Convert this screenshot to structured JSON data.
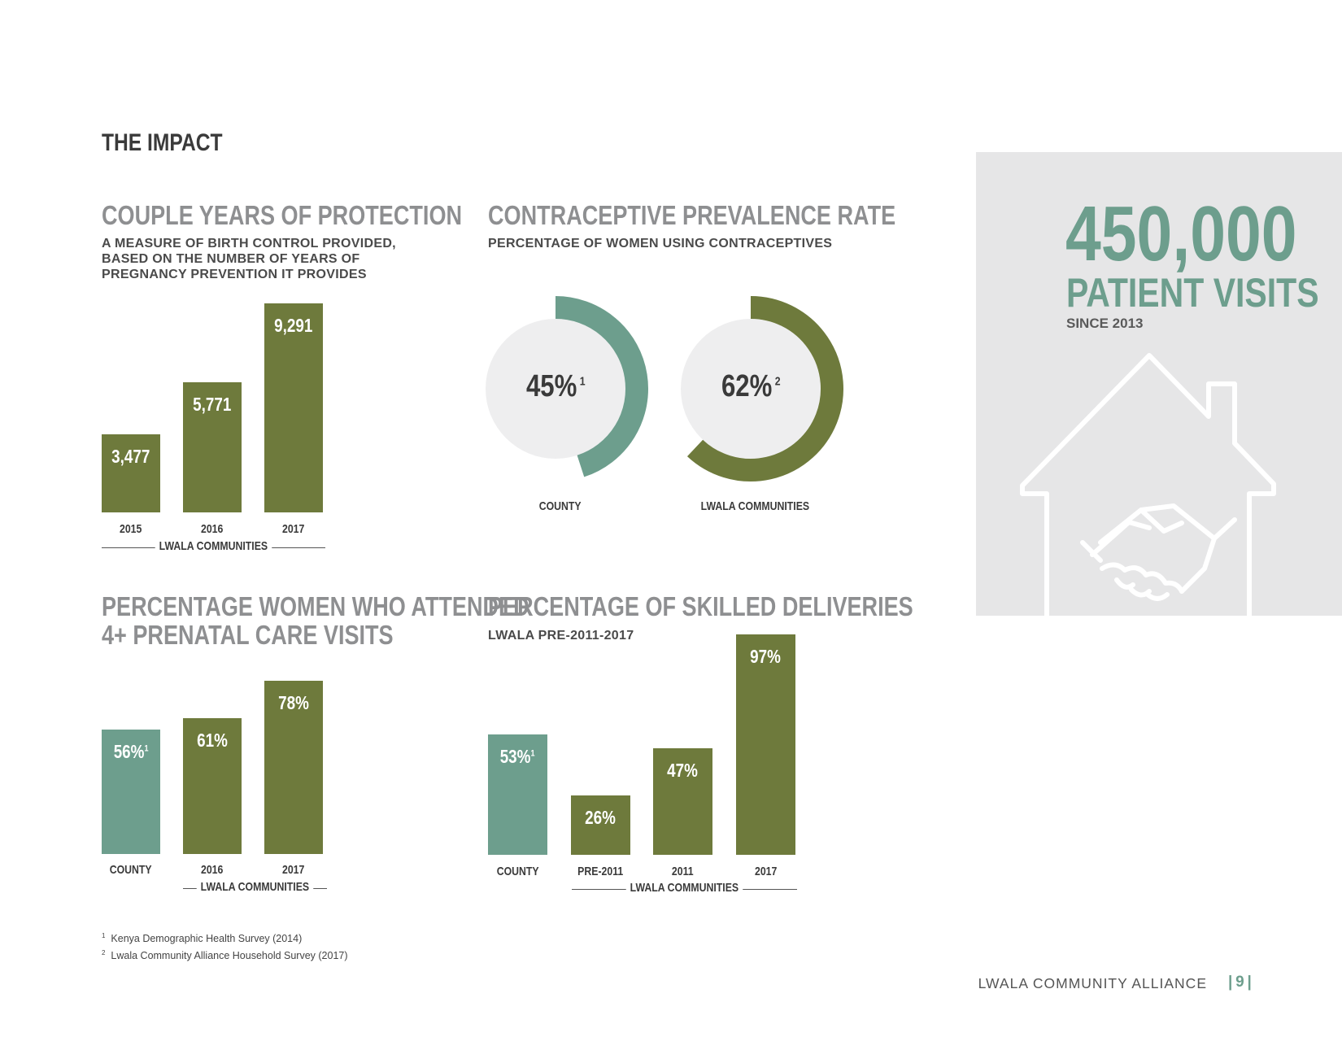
{
  "page": {
    "heading": "THE IMPACT",
    "colors": {
      "olive": "#6e7a3c",
      "teal": "#6d9e8d",
      "ring_bg": "#eeeeef",
      "panel": "#e6e6e7"
    }
  },
  "sections": {
    "cyp": {
      "title": "COUPLE YEARS OF PROTECTION",
      "subtitle_lines": [
        "A MEASURE OF BIRTH CONTROL PROVIDED,",
        "BASED ON THE NUMBER OF YEARS OF",
        "PREGNANCY PREVENTION IT PROVIDES"
      ]
    },
    "cpr": {
      "title": "CONTRACEPTIVE PREVALENCE RATE",
      "subtitle": "PERCENTAGE OF WOMEN USING CONTRACEPTIVES"
    },
    "anc": {
      "title_lines": [
        "PERCENTAGE WOMEN WHO ATTENDED",
        "4+ PRENATAL CARE VISITS"
      ]
    },
    "skilled": {
      "title": "PERCENTAGE OF SKILLED DELIVERIES",
      "subtitle": "LWALA PRE-2011-2017"
    }
  },
  "chart_data": [
    {
      "id": "cyp",
      "type": "bar",
      "title": "COUPLE YEARS OF PROTECTION",
      "categories": [
        "2015",
        "2016",
        "2017"
      ],
      "values": [
        3477,
        5771,
        9291
      ],
      "labels": [
        "3,477",
        "5,771",
        "9,291"
      ],
      "colors": [
        "olive",
        "olive",
        "olive"
      ],
      "group_label": "LWALA COMMUNITIES",
      "ylim": [
        0,
        9291
      ]
    },
    {
      "id": "cpr",
      "type": "pie",
      "title": "CONTRACEPTIVE PREVALENCE RATE",
      "items": [
        {
          "name": "COUNTY",
          "value": 45,
          "label": "45%",
          "note": "1",
          "color": "teal"
        },
        {
          "name": "LWALA COMMUNITIES",
          "value": 62,
          "label": "62%",
          "note": "2",
          "color": "olive"
        }
      ]
    },
    {
      "id": "anc",
      "type": "bar",
      "title": "PERCENTAGE WOMEN WHO ATTENDED 4+ PRENATAL CARE VISITS",
      "categories": [
        "COUNTY",
        "2016",
        "2017"
      ],
      "values": [
        56,
        61,
        78
      ],
      "labels": [
        "56%",
        "61%",
        "78%"
      ],
      "notes": [
        "1",
        "",
        ""
      ],
      "colors": [
        "teal",
        "olive",
        "olive"
      ],
      "group_label": "LWALA COMMUNITIES",
      "ylim": [
        0,
        78
      ]
    },
    {
      "id": "skilled",
      "type": "bar",
      "title": "PERCENTAGE OF SKILLED DELIVERIES",
      "categories": [
        "COUNTY",
        "PRE-2011",
        "2011",
        "2017"
      ],
      "values": [
        53,
        26,
        47,
        97
      ],
      "labels": [
        "53%",
        "26%",
        "47%",
        "97%"
      ],
      "notes": [
        "1",
        "",
        "",
        ""
      ],
      "colors": [
        "teal",
        "olive",
        "olive",
        "olive"
      ],
      "group_label": "LWALA COMMUNITIES",
      "ylim": [
        0,
        97
      ]
    }
  ],
  "panel": {
    "number": "450,000",
    "label": "PATIENT VISITS",
    "since": "SINCE 2013",
    "icon": "house-handshake-icon"
  },
  "footnotes": {
    "n1": "1",
    "t1": "Kenya Demographic Health Survey (2014)",
    "n2": "2",
    "t2": "Lwala Community Alliance Household Survey (2017)"
  },
  "footer": {
    "brand": "LWALA COMMUNITY ALLIANCE",
    "page": "9"
  }
}
